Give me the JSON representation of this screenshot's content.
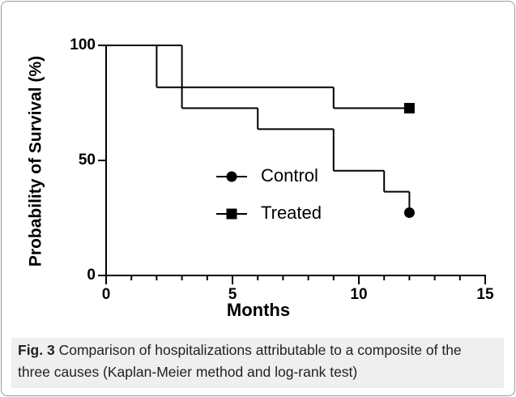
{
  "chart_data": {
    "type": "step",
    "xlabel": "Months",
    "ylabel": "Probability of Survival (%)",
    "xlim": [
      0,
      15
    ],
    "xticks": [
      0,
      5,
      10,
      15
    ],
    "xminorticks": [
      1,
      2,
      3,
      4,
      6,
      7,
      8,
      9,
      11,
      12,
      13,
      14
    ],
    "ylim": [
      0,
      100
    ],
    "yticks": [
      0,
      50,
      100
    ],
    "legend": "center",
    "series": [
      {
        "name": "Control",
        "color": "#000000",
        "marker": "circle",
        "x": [
          0,
          3,
          6,
          9,
          11,
          12
        ],
        "values": [
          100,
          72.7,
          63.6,
          45.5,
          36.4,
          27.3
        ]
      },
      {
        "name": "Treated",
        "color": "#000000",
        "marker": "square",
        "x": [
          0,
          2,
          9,
          12
        ],
        "values": [
          100,
          81.8,
          72.7,
          72.7
        ]
      }
    ]
  },
  "caption": {
    "label": "Fig. 3",
    "text": "Comparison of hospitalizations attributable to a composite of the three causes (Kaplan-Meier method and log-rank test)"
  }
}
